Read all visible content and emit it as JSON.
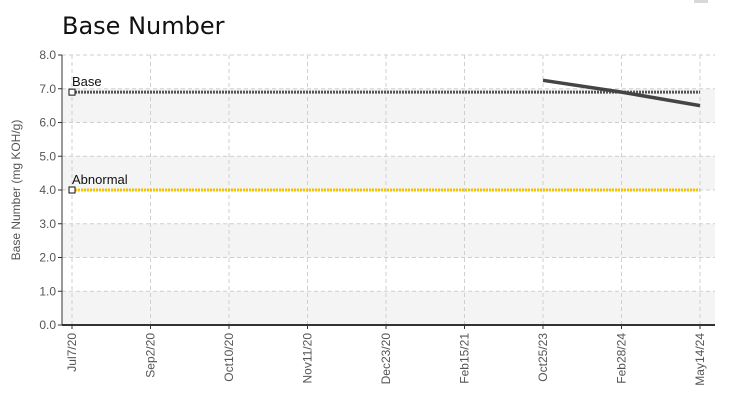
{
  "chart_data": {
    "type": "line",
    "title": "Base Number",
    "ylabel": "Base Number (mg KOH/g)",
    "xlabel": "",
    "ylim": [
      0,
      8
    ],
    "yticks": [
      "0.0",
      "1.0",
      "2.0",
      "3.0",
      "4.0",
      "5.0",
      "6.0",
      "7.0",
      "8.0"
    ],
    "categories": [
      "Jul7/20",
      "Sep2/20",
      "Oct10/20",
      "Nov11/20",
      "Dec23/20",
      "Feb15/21",
      "Oct25/23",
      "Feb28/24",
      "May14/24"
    ],
    "grid": true,
    "reference_lines": [
      {
        "label": "Base",
        "value": 6.9,
        "color": "#555555"
      },
      {
        "label": "Abnormal",
        "value": 4.0,
        "color": "#f2c300"
      }
    ],
    "series": [
      {
        "values": [
          null,
          null,
          null,
          null,
          null,
          null,
          7.25,
          6.9,
          6.5
        ],
        "color": "#444444"
      }
    ]
  }
}
